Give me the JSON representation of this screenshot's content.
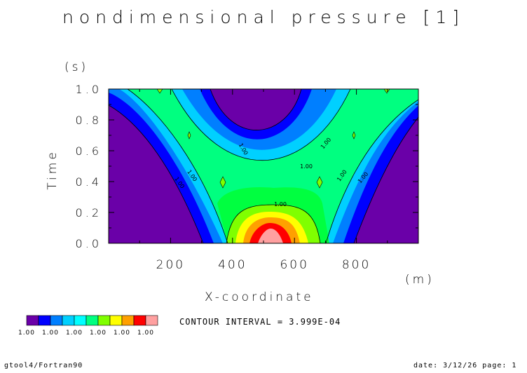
{
  "chart_data": {
    "type": "heatmap",
    "title": "nondimensional pressure [1]",
    "xlabel": "X-coordinate",
    "xunit": "(m)",
    "ylabel": "Time",
    "yunit": "(s)",
    "xlim": [
      0,
      1000
    ],
    "ylim": [
      0.0,
      1.0
    ],
    "xticks": [
      "200",
      "400",
      "600",
      "800"
    ],
    "xtick_values": [
      200,
      400,
      600,
      800
    ],
    "yticks": [
      "0.0",
      "0.2",
      "0.4",
      "0.6",
      "0.8",
      "1.0"
    ],
    "ytick_values": [
      0.0,
      0.2,
      0.4,
      0.6,
      0.8,
      1.0
    ],
    "contour_labels": [
      "1.00",
      "1.00",
      "1.00",
      "1.00",
      "1.00",
      "1.00",
      "1.00",
      "1.00"
    ],
    "colorbar": {
      "colors": [
        "#6a00a8",
        "#0000ff",
        "#007fff",
        "#00d0ff",
        "#00ffff",
        "#00ff80",
        "#80ff00",
        "#ffff00",
        "#ffa000",
        "#ff0000",
        "#ffa0a0"
      ],
      "labels": [
        "1.00",
        "1.00",
        "1.00",
        "1.00",
        "1.00",
        "1.00"
      ]
    },
    "contour_interval_text": "CONTOUR INTERVAL = 3.999E-04"
  },
  "footer": {
    "left": "gtool4/Fortran90",
    "right": "date: 3/12/26 page: 1"
  }
}
